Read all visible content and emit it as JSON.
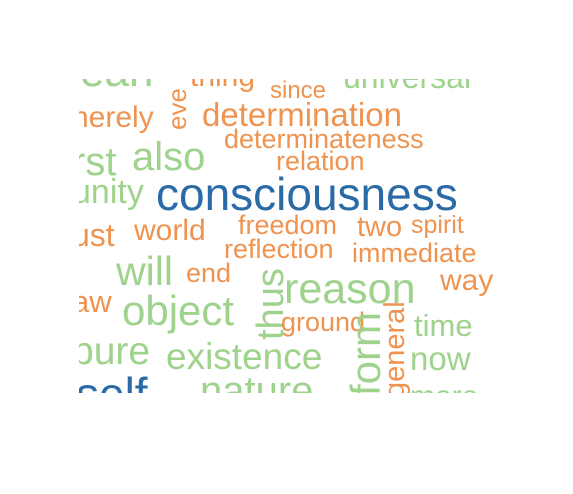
{
  "colors": {
    "dark_blue": "#2a6aa6",
    "orange": "#ef9350",
    "light_green": "#9fd38d"
  },
  "words": [
    {
      "text": "ean",
      "color": "light_green"
    },
    {
      "text": "eve",
      "color": "orange"
    },
    {
      "text": "thing",
      "color": "orange"
    },
    {
      "text": "since",
      "color": "orange"
    },
    {
      "text": "universal",
      "color": "light_green"
    },
    {
      "text": "nerely",
      "color": "orange"
    },
    {
      "text": "determination",
      "color": "orange"
    },
    {
      "text": "determinateness",
      "color": "orange"
    },
    {
      "text": "rst",
      "color": "light_green"
    },
    {
      "text": "also",
      "color": "light_green"
    },
    {
      "text": "relation",
      "color": "orange"
    },
    {
      "text": "unity",
      "color": "light_green"
    },
    {
      "text": "consciousness",
      "color": "dark_blue"
    },
    {
      "text": "ust",
      "color": "orange"
    },
    {
      "text": "world",
      "color": "orange"
    },
    {
      "text": "freedom",
      "color": "orange"
    },
    {
      "text": "two",
      "color": "orange"
    },
    {
      "text": "spirit",
      "color": "orange"
    },
    {
      "text": "reflection",
      "color": "orange"
    },
    {
      "text": "immediate",
      "color": "orange"
    },
    {
      "text": "will",
      "color": "light_green"
    },
    {
      "text": "end",
      "color": "orange"
    },
    {
      "text": "thus",
      "color": "light_green"
    },
    {
      "text": "reason",
      "color": "light_green"
    },
    {
      "text": "way",
      "color": "orange"
    },
    {
      "text": "aw",
      "color": "orange"
    },
    {
      "text": "object",
      "color": "light_green"
    },
    {
      "text": "ground",
      "color": "orange"
    },
    {
      "text": "general",
      "color": "orange"
    },
    {
      "text": "time",
      "color": "light_green"
    },
    {
      "text": "pure",
      "color": "light_green"
    },
    {
      "text": "existence",
      "color": "light_green"
    },
    {
      "text": "form",
      "color": "light_green"
    },
    {
      "text": "now",
      "color": "light_green"
    },
    {
      "text": "self",
      "color": "dark_blue"
    },
    {
      "text": "nature",
      "color": "light_green"
    },
    {
      "text": "mere",
      "color": "light_green"
    }
  ]
}
